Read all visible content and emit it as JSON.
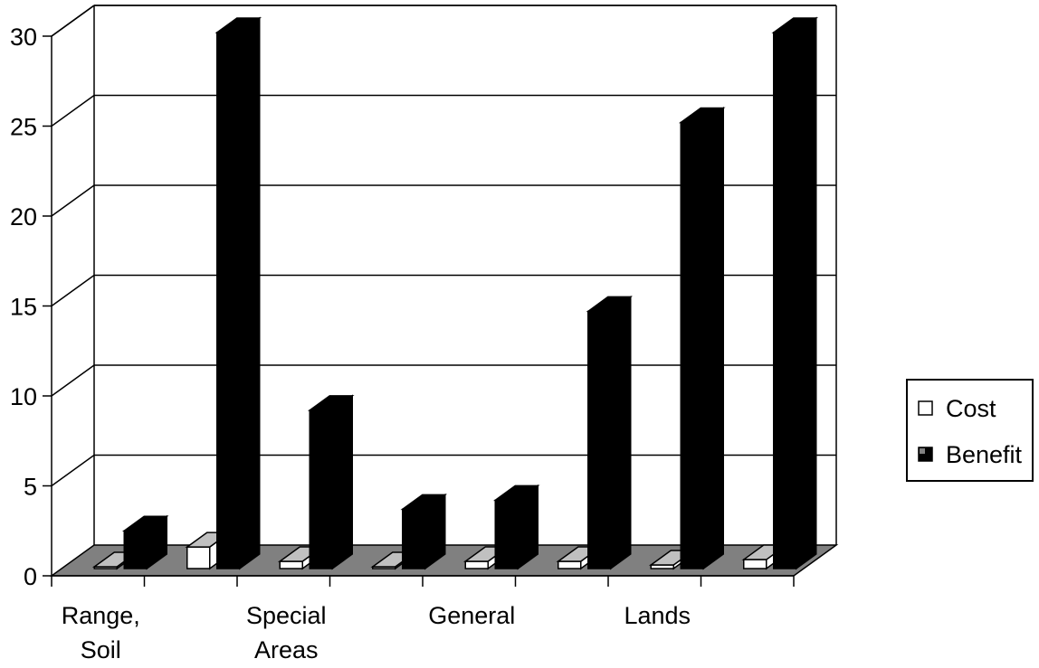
{
  "chart_data": {
    "type": "bar",
    "three_d": true,
    "title": "",
    "xlabel": "",
    "ylabel": "",
    "ylim": [
      0,
      30
    ],
    "yticks": [
      0,
      5,
      10,
      15,
      20,
      25,
      30
    ],
    "grid": true,
    "legend_position": "right",
    "category_labels": [
      {
        "lines": [
          "Range,",
          "Soil"
        ]
      },
      {
        "lines": [
          "Special",
          "Areas"
        ]
      },
      {
        "lines": [
          "General"
        ]
      },
      {
        "lines": [
          "Lands"
        ]
      }
    ],
    "categories": [
      "Range, Soil",
      "",
      "Special Areas",
      "",
      "General",
      "",
      "Lands",
      ""
    ],
    "series": [
      {
        "name": "Cost",
        "values": [
          0.1,
          1.2,
          0.4,
          0.1,
          0.4,
          0.4,
          0.2,
          0.5
        ],
        "color": "#ffffff"
      },
      {
        "name": "Benefit",
        "values": [
          2.1,
          29.8,
          8.8,
          3.3,
          3.8,
          14.3,
          24.8,
          29.8
        ],
        "color": "#000000"
      }
    ],
    "colors": {
      "floor": "#808080",
      "bar_top_cost": "#c0c0c0",
      "bar_top_benefit": "#000000"
    }
  }
}
